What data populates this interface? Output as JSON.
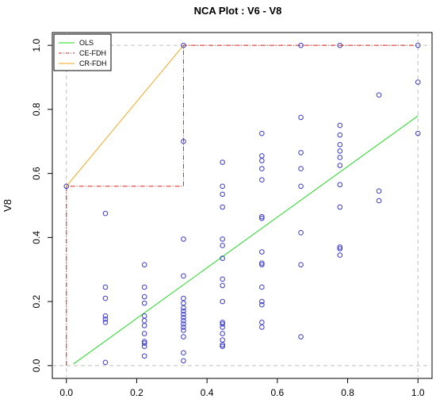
{
  "chart_data": {
    "type": "scatter",
    "title": "NCA Plot : V6 - V8",
    "xlabel": "",
    "ylabel": "V8",
    "xlim": [
      -0.04,
      1.04
    ],
    "ylim": [
      -0.04,
      1.04
    ],
    "x_ticks": [
      "0.0",
      "0.2",
      "0.4",
      "0.6",
      "0.8",
      "1.0"
    ],
    "y_ticks": [
      "0.0",
      "0.2",
      "0.4",
      "0.6",
      "0.8",
      "1.0"
    ],
    "x_tick_values": [
      0,
      0.2,
      0.4,
      0.6,
      0.8,
      1.0
    ],
    "y_tick_values": [
      0,
      0.2,
      0.4,
      0.6,
      0.8,
      1.0
    ],
    "grid": "dashed reference lines at x=0, x=1, y=0, y=1",
    "legend_position": "top-left",
    "colors": {
      "points": "#3b3bcc",
      "ols": "#22dd22",
      "ce_fdh": "#dd2222",
      "cr_fdh": "#f5a623",
      "dashed": "#c0c0c0"
    },
    "legend": [
      {
        "name": "OLS",
        "color": "#22dd22"
      },
      {
        "name": "CE-FDH",
        "color": "#dd2222"
      },
      {
        "name": "CR-FDH",
        "color": "#f5a623"
      }
    ],
    "points": [
      [
        0.0,
        0.56
      ],
      [
        0.111,
        0.475
      ],
      [
        0.111,
        0.245
      ],
      [
        0.111,
        0.21
      ],
      [
        0.111,
        0.155
      ],
      [
        0.111,
        0.145
      ],
      [
        0.111,
        0.135
      ],
      [
        0.111,
        0.01
      ],
      [
        0.222,
        0.315
      ],
      [
        0.222,
        0.245
      ],
      [
        0.222,
        0.215
      ],
      [
        0.222,
        0.195
      ],
      [
        0.222,
        0.155
      ],
      [
        0.222,
        0.14
      ],
      [
        0.222,
        0.125
      ],
      [
        0.222,
        0.1
      ],
      [
        0.222,
        0.075
      ],
      [
        0.222,
        0.07
      ],
      [
        0.222,
        0.06
      ],
      [
        0.222,
        0.03
      ],
      [
        0.333,
        1.0
      ],
      [
        0.333,
        0.7
      ],
      [
        0.333,
        0.395
      ],
      [
        0.333,
        0.28
      ],
      [
        0.333,
        0.21
      ],
      [
        0.333,
        0.195
      ],
      [
        0.333,
        0.18
      ],
      [
        0.333,
        0.17
      ],
      [
        0.333,
        0.16
      ],
      [
        0.333,
        0.15
      ],
      [
        0.333,
        0.14
      ],
      [
        0.333,
        0.13
      ],
      [
        0.333,
        0.12
      ],
      [
        0.333,
        0.11
      ],
      [
        0.333,
        0.09
      ],
      [
        0.333,
        0.04
      ],
      [
        0.333,
        0.015
      ],
      [
        0.444,
        0.635
      ],
      [
        0.444,
        0.56
      ],
      [
        0.444,
        0.535
      ],
      [
        0.444,
        0.495
      ],
      [
        0.444,
        0.395
      ],
      [
        0.444,
        0.375
      ],
      [
        0.444,
        0.335
      ],
      [
        0.444,
        0.27
      ],
      [
        0.444,
        0.25
      ],
      [
        0.444,
        0.2
      ],
      [
        0.444,
        0.135
      ],
      [
        0.444,
        0.13
      ],
      [
        0.444,
        0.12
      ],
      [
        0.444,
        0.1
      ],
      [
        0.444,
        0.08
      ],
      [
        0.444,
        0.065
      ],
      [
        0.444,
        0.06
      ],
      [
        0.556,
        0.725
      ],
      [
        0.556,
        0.655
      ],
      [
        0.556,
        0.64
      ],
      [
        0.556,
        0.615
      ],
      [
        0.556,
        0.58
      ],
      [
        0.556,
        0.465
      ],
      [
        0.556,
        0.46
      ],
      [
        0.556,
        0.355
      ],
      [
        0.556,
        0.32
      ],
      [
        0.556,
        0.315
      ],
      [
        0.556,
        0.245
      ],
      [
        0.556,
        0.2
      ],
      [
        0.556,
        0.19
      ],
      [
        0.556,
        0.135
      ],
      [
        0.556,
        0.12
      ],
      [
        0.667,
        1.0
      ],
      [
        0.667,
        0.775
      ],
      [
        0.667,
        0.665
      ],
      [
        0.667,
        0.615
      ],
      [
        0.667,
        0.56
      ],
      [
        0.667,
        0.415
      ],
      [
        0.667,
        0.315
      ],
      [
        0.667,
        0.09
      ],
      [
        0.778,
        1.0
      ],
      [
        0.778,
        0.75
      ],
      [
        0.778,
        0.72
      ],
      [
        0.778,
        0.69
      ],
      [
        0.778,
        0.67
      ],
      [
        0.778,
        0.65
      ],
      [
        0.778,
        0.625
      ],
      [
        0.778,
        0.565
      ],
      [
        0.778,
        0.495
      ],
      [
        0.778,
        0.37
      ],
      [
        0.778,
        0.365
      ],
      [
        0.778,
        0.345
      ],
      [
        0.889,
        0.845
      ],
      [
        0.889,
        0.545
      ],
      [
        0.889,
        0.515
      ],
      [
        1.0,
        1.0
      ],
      [
        1.0,
        0.885
      ],
      [
        1.0,
        0.725
      ]
    ],
    "lines": {
      "ols": [
        [
          0.02,
          0.005
        ],
        [
          1.0,
          0.78
        ]
      ],
      "ce_fdh": [
        [
          0.0,
          0.0
        ],
        [
          0.0,
          0.56
        ],
        [
          0.333,
          0.56
        ],
        [
          0.333,
          1.0
        ],
        [
          1.0,
          1.0
        ]
      ],
      "cr_fdh": [
        [
          0.0,
          0.56
        ],
        [
          0.333,
          1.0
        ]
      ]
    }
  }
}
